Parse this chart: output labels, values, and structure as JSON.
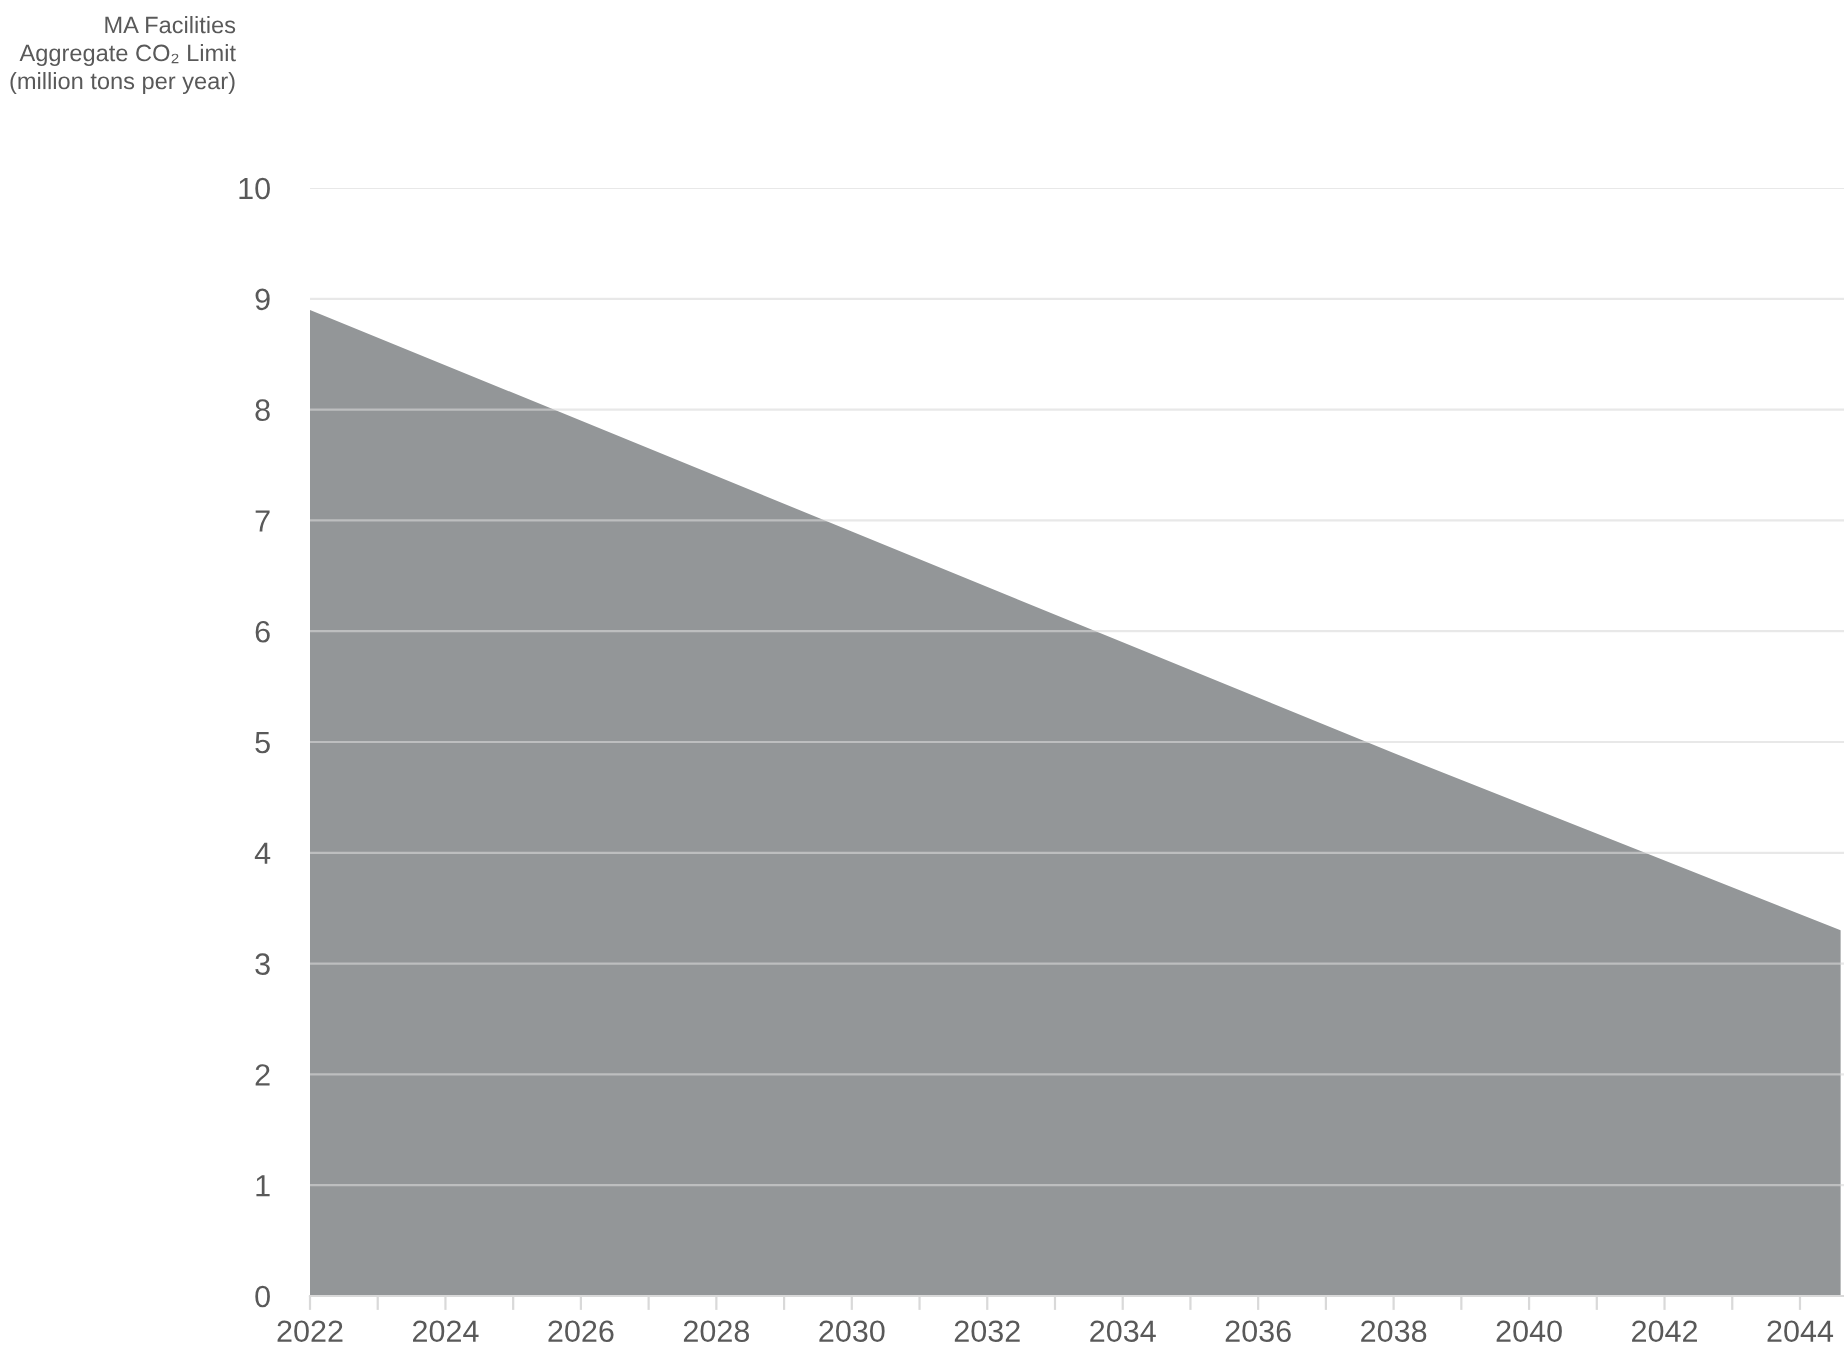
{
  "chart_data": {
    "type": "area",
    "ylabel": "MA Facilities\nAggregate CO₂ Limit\n(million tons per year)",
    "x": [
      2022,
      2030,
      2034,
      2038,
      2044.6
    ],
    "series": [
      {
        "color": "#939698",
        "values": [
          8.9,
          6.9,
          5.9,
          4.9,
          3.3
        ]
      }
    ],
    "xlim": [
      2022,
      2044.65
    ],
    "xticks": [
      2022,
      {
        "value": 2023,
        "label": null
      },
      2024,
      {
        "value": 2025,
        "label": null
      },
      2026,
      {
        "value": 2027,
        "label": null
      },
      2028,
      {
        "value": 2029,
        "label": null
      },
      2030,
      {
        "value": 2031,
        "label": null
      },
      2032,
      {
        "value": 2033,
        "label": null
      },
      2034,
      {
        "value": 2035,
        "label": null
      },
      2036,
      {
        "value": 2037,
        "label": null
      },
      2038,
      {
        "value": 2039,
        "label": null
      },
      2040,
      {
        "value": 2041,
        "label": null
      },
      2042,
      {
        "value": 2043,
        "label": null
      },
      2044
    ],
    "ylim": [
      0,
      10
    ],
    "yticks": [
      0,
      1,
      2,
      3,
      4,
      5,
      6,
      7,
      8,
      9,
      10
    ],
    "grid": "y",
    "legend": false
  }
}
